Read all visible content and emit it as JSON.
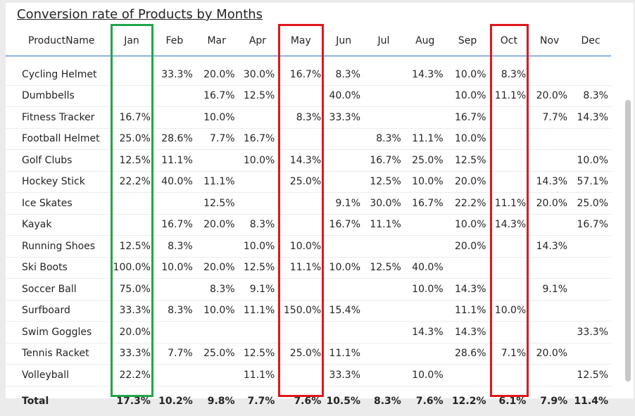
{
  "title": "Conversion rate of Products by Months",
  "chart_data": {
    "type": "table",
    "title": "Conversion rate of Products by Months",
    "columns": [
      "ProductName",
      "Jan",
      "Feb",
      "Mar",
      "Apr",
      "May",
      "Jun",
      "Jul",
      "Aug",
      "Sep",
      "Oct",
      "Nov",
      "Dec"
    ],
    "rows": [
      [
        "Cycling Helmet",
        "",
        "33.3%",
        "20.0%",
        "30.0%",
        "16.7%",
        "8.3%",
        "",
        "14.3%",
        "10.0%",
        "8.3%",
        "",
        ""
      ],
      [
        "Dumbbells",
        "",
        "",
        "16.7%",
        "12.5%",
        "",
        "40.0%",
        "",
        "",
        "10.0%",
        "11.1%",
        "20.0%",
        "8.3%"
      ],
      [
        "Fitness Tracker",
        "16.7%",
        "",
        "10.0%",
        "",
        "8.3%",
        "33.3%",
        "",
        "",
        "16.7%",
        "",
        "7.7%",
        "14.3%"
      ],
      [
        "Football Helmet",
        "25.0%",
        "28.6%",
        "7.7%",
        "16.7%",
        "",
        "",
        "8.3%",
        "11.1%",
        "10.0%",
        "",
        "",
        ""
      ],
      [
        "Golf Clubs",
        "12.5%",
        "11.1%",
        "",
        "10.0%",
        "14.3%",
        "",
        "16.7%",
        "25.0%",
        "12.5%",
        "",
        "",
        "10.0%"
      ],
      [
        "Hockey Stick",
        "22.2%",
        "40.0%",
        "11.1%",
        "",
        "25.0%",
        "",
        "12.5%",
        "10.0%",
        "20.0%",
        "",
        "14.3%",
        "57.1%"
      ],
      [
        "Ice Skates",
        "",
        "",
        "12.5%",
        "",
        "",
        "9.1%",
        "30.0%",
        "16.7%",
        "22.2%",
        "11.1%",
        "20.0%",
        "25.0%"
      ],
      [
        "Kayak",
        "",
        "16.7%",
        "20.0%",
        "8.3%",
        "",
        "16.7%",
        "11.1%",
        "",
        "10.0%",
        "14.3%",
        "",
        "16.7%"
      ],
      [
        "Running Shoes",
        "12.5%",
        "8.3%",
        "",
        "10.0%",
        "10.0%",
        "",
        "",
        "",
        "20.0%",
        "",
        "14.3%",
        ""
      ],
      [
        "Ski Boots",
        "100.0%",
        "10.0%",
        "20.0%",
        "12.5%",
        "11.1%",
        "10.0%",
        "12.5%",
        "40.0%",
        "",
        "",
        "",
        ""
      ],
      [
        "Soccer Ball",
        "75.0%",
        "",
        "8.3%",
        "9.1%",
        "",
        "",
        "",
        "10.0%",
        "14.3%",
        "",
        "9.1%",
        ""
      ],
      [
        "Surfboard",
        "33.3%",
        "8.3%",
        "10.0%",
        "11.1%",
        "150.0%",
        "15.4%",
        "",
        "",
        "11.1%",
        "10.0%",
        "",
        ""
      ],
      [
        "Swim Goggles",
        "20.0%",
        "",
        "",
        "",
        "",
        "",
        "",
        "14.3%",
        "14.3%",
        "",
        "",
        "33.3%"
      ],
      [
        "Tennis Racket",
        "33.3%",
        "7.7%",
        "25.0%",
        "12.5%",
        "25.0%",
        "11.1%",
        "",
        "",
        "28.6%",
        "7.1%",
        "20.0%",
        ""
      ],
      [
        "Volleyball",
        "22.2%",
        "",
        "",
        "11.1%",
        "",
        "33.3%",
        "",
        "10.0%",
        "",
        "",
        "",
        "12.5%"
      ]
    ],
    "total": [
      "Total",
      "17.3%",
      "10.2%",
      "9.8%",
      "7.7%",
      "7.6%",
      "10.5%",
      "8.3%",
      "7.6%",
      "12.2%",
      "6.1%",
      "7.9%",
      "11.4%"
    ],
    "highlights": [
      {
        "column": "Jan",
        "color": "#1fa64a"
      },
      {
        "column": "May",
        "color": "#e0161c"
      },
      {
        "column": "Oct",
        "color": "#e0161c"
      }
    ]
  }
}
